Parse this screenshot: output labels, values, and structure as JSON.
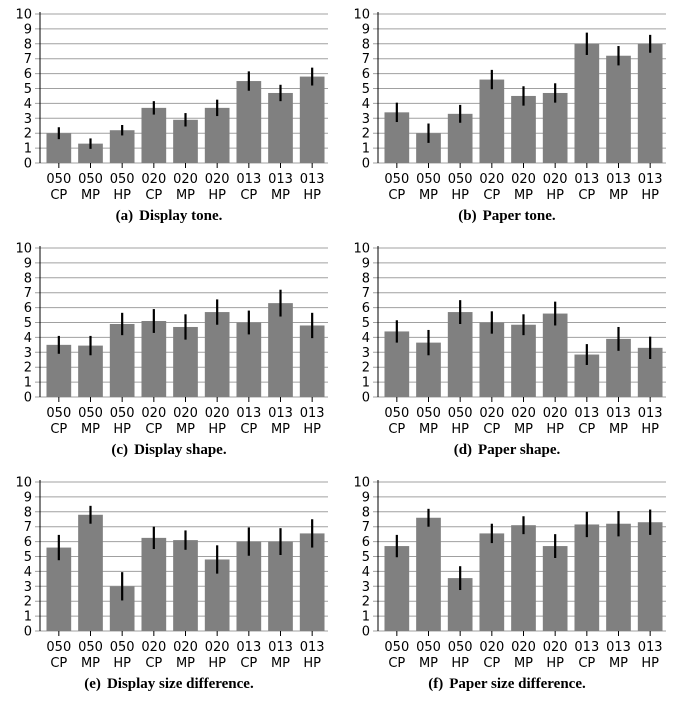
{
  "figure": {
    "bar_color": "#808080",
    "error_color": "#000000",
    "grid_color": "#a0a0a0"
  },
  "chart_data": [
    {
      "id": "a",
      "type": "bar",
      "caption_tag": "(a)",
      "caption": "Display tone.",
      "categories": [
        [
          "050",
          "CP"
        ],
        [
          "050",
          "MP"
        ],
        [
          "050",
          "HP"
        ],
        [
          "020",
          "CP"
        ],
        [
          "020",
          "MP"
        ],
        [
          "020",
          "HP"
        ],
        [
          "013",
          "CP"
        ],
        [
          "013",
          "MP"
        ],
        [
          "013",
          "HP"
        ]
      ],
      "values": [
        2.0,
        1.3,
        2.2,
        3.7,
        2.9,
        3.7,
        5.5,
        4.7,
        5.8
      ],
      "error": [
        0.4,
        0.35,
        0.35,
        0.45,
        0.45,
        0.55,
        0.65,
        0.55,
        0.6
      ],
      "ylim": [
        0,
        10
      ],
      "yticks": [
        0,
        1,
        2,
        3,
        4,
        5,
        6,
        7,
        8,
        9,
        10
      ],
      "grid": true
    },
    {
      "id": "b",
      "type": "bar",
      "caption_tag": "(b)",
      "caption": "Paper tone.",
      "categories": [
        [
          "050",
          "CP"
        ],
        [
          "050",
          "MP"
        ],
        [
          "050",
          "HP"
        ],
        [
          "020",
          "CP"
        ],
        [
          "020",
          "MP"
        ],
        [
          "020",
          "HP"
        ],
        [
          "013",
          "CP"
        ],
        [
          "013",
          "MP"
        ],
        [
          "013",
          "HP"
        ]
      ],
      "values": [
        3.4,
        2.0,
        3.3,
        5.6,
        4.5,
        4.7,
        8.0,
        7.2,
        8.0
      ],
      "error": [
        0.65,
        0.65,
        0.6,
        0.65,
        0.65,
        0.65,
        0.75,
        0.65,
        0.6
      ],
      "ylim": [
        0,
        10
      ],
      "yticks": [
        0,
        1,
        2,
        3,
        4,
        5,
        6,
        7,
        8,
        9,
        10
      ],
      "grid": true
    },
    {
      "id": "c",
      "type": "bar",
      "caption_tag": "(c)",
      "caption": "Display shape.",
      "categories": [
        [
          "050",
          "CP"
        ],
        [
          "050",
          "MP"
        ],
        [
          "050",
          "HP"
        ],
        [
          "020",
          "CP"
        ],
        [
          "020",
          "MP"
        ],
        [
          "020",
          "HP"
        ],
        [
          "013",
          "CP"
        ],
        [
          "013",
          "MP"
        ],
        [
          "013",
          "HP"
        ]
      ],
      "values": [
        3.5,
        3.45,
        4.9,
        5.1,
        4.7,
        5.7,
        5.0,
        6.3,
        4.8
      ],
      "error": [
        0.6,
        0.65,
        0.75,
        0.8,
        0.85,
        0.85,
        0.8,
        0.9,
        0.85
      ],
      "ylim": [
        0,
        10
      ],
      "yticks": [
        0,
        1,
        2,
        3,
        4,
        5,
        6,
        7,
        8,
        9,
        10
      ],
      "grid": true
    },
    {
      "id": "d",
      "type": "bar",
      "caption_tag": "(d)",
      "caption": "Paper shape.",
      "categories": [
        [
          "050",
          "CP"
        ],
        [
          "050",
          "MP"
        ],
        [
          "050",
          "HP"
        ],
        [
          "020",
          "CP"
        ],
        [
          "020",
          "MP"
        ],
        [
          "020",
          "HP"
        ],
        [
          "013",
          "CP"
        ],
        [
          "013",
          "MP"
        ],
        [
          "013",
          "HP"
        ]
      ],
      "values": [
        4.4,
        3.65,
        5.7,
        5.0,
        4.85,
        5.6,
        2.85,
        3.9,
        3.3
      ],
      "error": [
        0.75,
        0.85,
        0.8,
        0.75,
        0.7,
        0.8,
        0.7,
        0.8,
        0.75
      ],
      "ylim": [
        0,
        10
      ],
      "yticks": [
        0,
        1,
        2,
        3,
        4,
        5,
        6,
        7,
        8,
        9,
        10
      ],
      "grid": true
    },
    {
      "id": "e",
      "type": "bar",
      "caption_tag": "(e)",
      "caption": "Display size difference.",
      "categories": [
        [
          "050",
          "CP"
        ],
        [
          "050",
          "MP"
        ],
        [
          "050",
          "HP"
        ],
        [
          "020",
          "CP"
        ],
        [
          "020",
          "MP"
        ],
        [
          "020",
          "HP"
        ],
        [
          "013",
          "CP"
        ],
        [
          "013",
          "MP"
        ],
        [
          "013",
          "HP"
        ]
      ],
      "values": [
        5.6,
        7.8,
        3.0,
        6.25,
        6.1,
        4.8,
        6.0,
        6.0,
        6.55
      ],
      "error": [
        0.85,
        0.6,
        0.95,
        0.75,
        0.65,
        0.95,
        0.95,
        0.9,
        0.95
      ],
      "ylim": [
        0,
        10
      ],
      "yticks": [
        0,
        1,
        2,
        3,
        4,
        5,
        6,
        7,
        8,
        9,
        10
      ],
      "grid": true
    },
    {
      "id": "f",
      "type": "bar",
      "caption_tag": "(f)",
      "caption": "Paper size difference.",
      "categories": [
        [
          "050",
          "CP"
        ],
        [
          "050",
          "MP"
        ],
        [
          "050",
          "HP"
        ],
        [
          "020",
          "CP"
        ],
        [
          "020",
          "MP"
        ],
        [
          "020",
          "HP"
        ],
        [
          "013",
          "CP"
        ],
        [
          "013",
          "MP"
        ],
        [
          "013",
          "HP"
        ]
      ],
      "values": [
        5.7,
        7.6,
        3.55,
        6.55,
        7.1,
        5.7,
        7.15,
        7.2,
        7.3
      ],
      "error": [
        0.75,
        0.6,
        0.8,
        0.65,
        0.6,
        0.8,
        0.85,
        0.85,
        0.85
      ],
      "ylim": [
        0,
        10
      ],
      "yticks": [
        0,
        1,
        2,
        3,
        4,
        5,
        6,
        7,
        8,
        9,
        10
      ],
      "grid": true
    }
  ]
}
